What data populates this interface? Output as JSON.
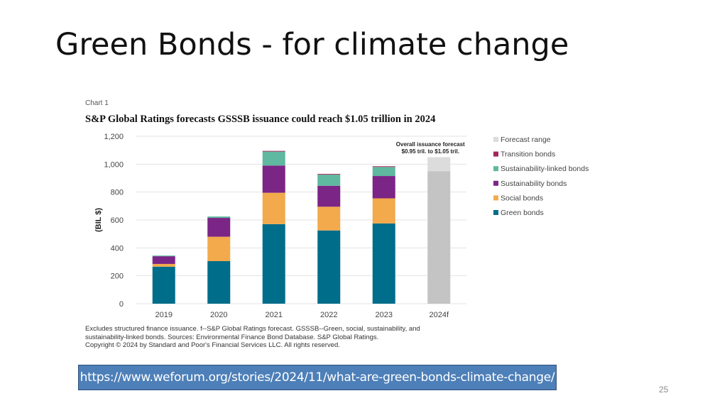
{
  "slide": {
    "title": "Green Bonds - for climate change",
    "link": "https://www.weforum.org/stories/2024/11/what-are-green-bonds-climate-change/",
    "page_number": "25"
  },
  "figure": {
    "label": "Chart 1",
    "footnote_lines": [
      "Excludes structured finance issuance. f--S&P Global Ratings forecast. GSSSB--Green, social, sustainability, and",
      "sustainability-linked  bonds. Sources: Environmental  Finance Bond Database. S&P Global Ratings.",
      "Copyright  © 2024 by Standard  and Poor's Financial Services LLC. All rights reserved."
    ]
  },
  "chart_data": {
    "type": "bar",
    "stacked": true,
    "title": "S&P Global Ratings forecasts GSSSB issuance could reach $1.05 trillion in 2024",
    "ylabel": "(BIL $)",
    "xlabel": "",
    "ylim": [
      0,
      1200
    ],
    "yticks": [
      "0",
      "200",
      "400",
      "600",
      "800",
      "1,000",
      "1,200"
    ],
    "ytick_values": [
      0,
      200,
      400,
      600,
      800,
      1000,
      1200
    ],
    "grid": true,
    "legend_position": "right",
    "categories": [
      "2019",
      "2020",
      "2021",
      "2022",
      "2023",
      "2024f"
    ],
    "series": [
      {
        "name": "Green bonds",
        "color": "#006d8a",
        "values": [
          265,
          305,
          570,
          525,
          575,
          0
        ]
      },
      {
        "name": "Social bonds",
        "color": "#f2aa4c",
        "values": [
          20,
          175,
          225,
          170,
          180,
          0
        ]
      },
      {
        "name": "Sustainability bonds",
        "color": "#7b2586",
        "values": [
          55,
          135,
          195,
          150,
          160,
          0
        ]
      },
      {
        "name": "Sustainability-linked bonds",
        "color": "#5fb8a0",
        "values": [
          5,
          10,
          100,
          80,
          65,
          0
        ]
      },
      {
        "name": "Transition bonds",
        "color": "#a3265a",
        "values": [
          0,
          0,
          5,
          5,
          5,
          0
        ]
      },
      {
        "name": "Forecast range",
        "color": "#dcdcdc",
        "values": [
          0,
          0,
          0,
          0,
          0,
          100
        ]
      }
    ],
    "forecast_base": {
      "category": "2024f",
      "value": 950,
      "color": "#c4c4c4"
    },
    "legend_order": [
      "Forecast range",
      "Transition bonds",
      "Sustainability-linked bonds",
      "Sustainability bonds",
      "Social bonds",
      "Green bonds"
    ],
    "annotation": {
      "lines": [
        "Overall issuance forecast",
        "$0.95 tril. to $1.05 tril."
      ],
      "category": "2024f"
    }
  }
}
